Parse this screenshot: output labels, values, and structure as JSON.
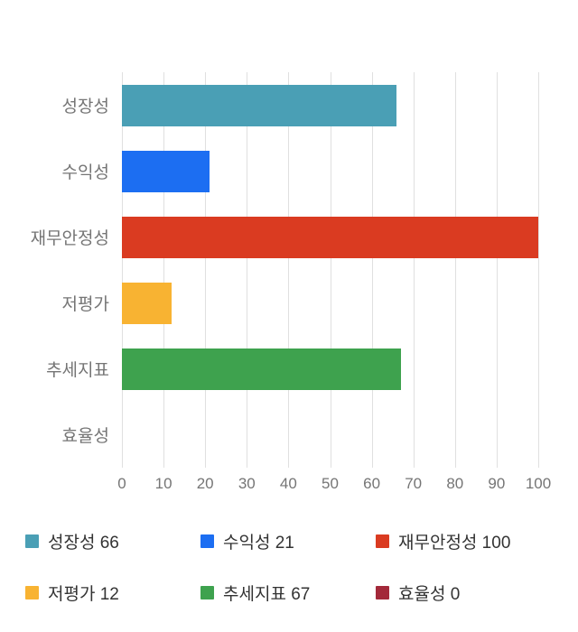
{
  "chart_data": {
    "type": "bar",
    "orientation": "horizontal",
    "categories": [
      "성장성",
      "수익성",
      "재무안정성",
      "저평가",
      "추세지표",
      "효율성"
    ],
    "values": [
      66,
      21,
      100,
      12,
      67,
      0
    ],
    "colors": [
      "#4A9FB5",
      "#1C6EF2",
      "#DA3B21",
      "#F8B332",
      "#3EA24E",
      "#A3293A"
    ],
    "xlim": [
      0,
      100
    ],
    "x_ticks": [
      0,
      10,
      20,
      30,
      40,
      50,
      60,
      70,
      80,
      90,
      100
    ],
    "grid": true,
    "grid_color": "#e0e0e0",
    "axis_text_color": "#757575",
    "legend_position": "bottom"
  },
  "legend": {
    "items": [
      {
        "label": "성장성 66",
        "color": "#4A9FB5"
      },
      {
        "label": "수익성 21",
        "color": "#1C6EF2"
      },
      {
        "label": "재무안정성 100",
        "color": "#DA3B21"
      },
      {
        "label": "저평가 12",
        "color": "#F8B332"
      },
      {
        "label": "추세지표 67",
        "color": "#3EA24E"
      },
      {
        "label": "효율성 0",
        "color": "#A3293A"
      }
    ]
  }
}
